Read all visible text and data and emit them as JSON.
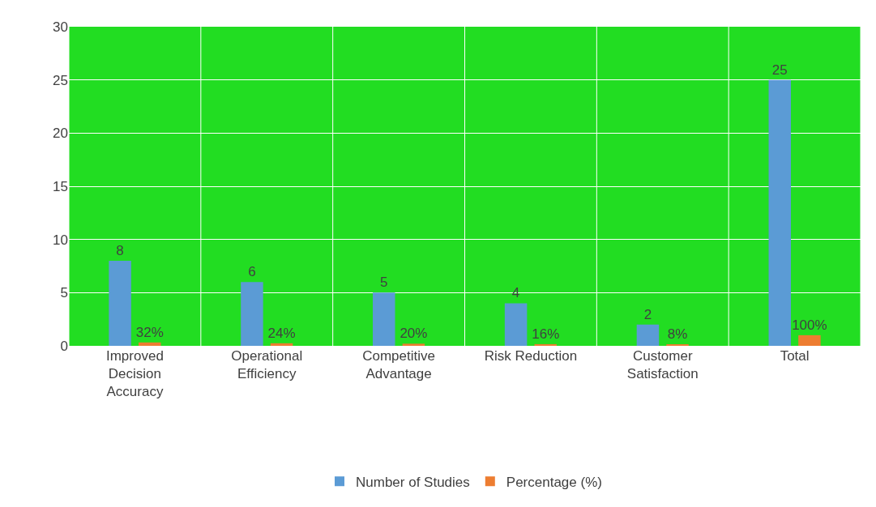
{
  "chart_data": {
    "type": "bar",
    "categories": [
      "Improved Decision Accuracy",
      "Operational Efficiency",
      "Competitive Advantage",
      "Risk Reduction",
      "Customer Satisfaction",
      "Total"
    ],
    "series": [
      {
        "name": "Number of Studies",
        "color": "#5b9bd5",
        "values": [
          8,
          6,
          5,
          4,
          2,
          25
        ],
        "value_labels": [
          "8",
          "6",
          "5",
          "4",
          "2",
          "25"
        ]
      },
      {
        "name": "Percentage (%)",
        "color": "#ed7d31",
        "values": [
          0.32,
          0.24,
          0.2,
          0.16,
          0.08,
          1
        ],
        "value_labels": [
          "32%",
          "24%",
          "20%",
          "16%",
          "8%",
          "100%"
        ]
      }
    ],
    "ylim": [
      0,
      30
    ],
    "yticks": [
      0,
      5,
      10,
      15,
      20,
      25,
      30
    ],
    "grid": true,
    "legend": "bottom"
  }
}
